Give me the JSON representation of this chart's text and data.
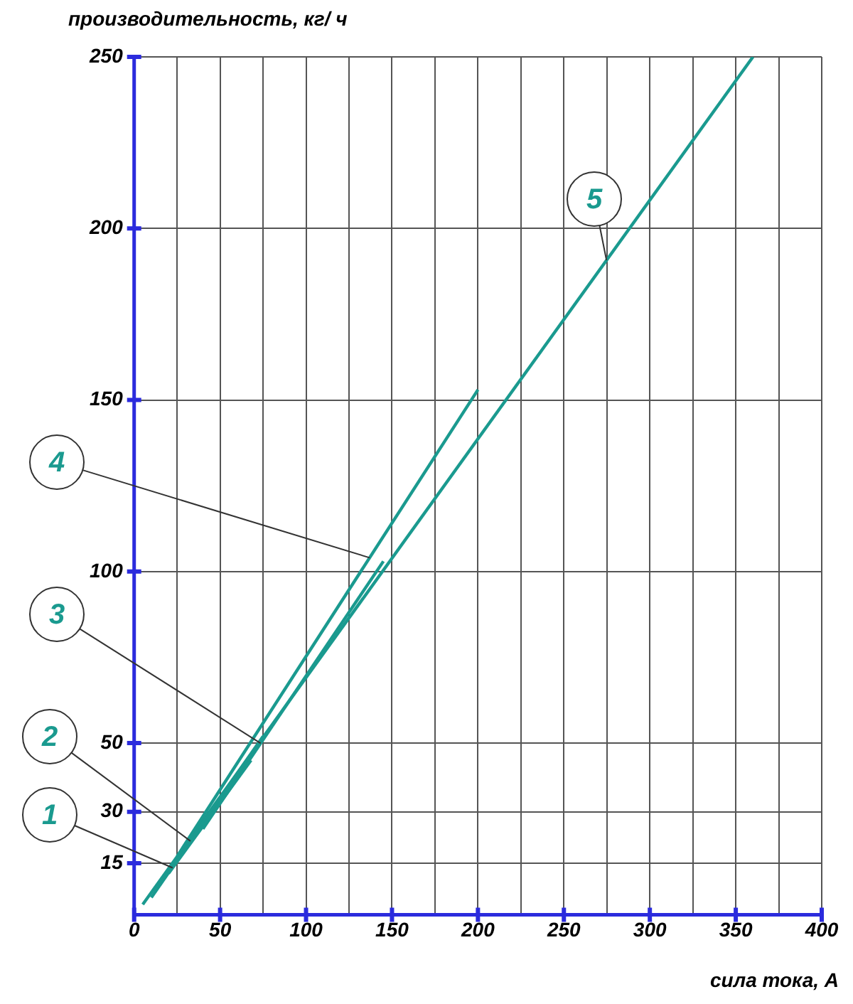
{
  "chart_data": {
    "type": "line",
    "xlabel": "сила тока, А",
    "ylabel": "производительность, кг/ ч",
    "series": [
      {
        "name": "1",
        "color": "#1a9a8f",
        "x": [
          20,
          68
        ],
        "values": [
          12,
          45
        ]
      },
      {
        "name": "2",
        "color": "#1a9a8f",
        "x": [
          10,
          75
        ],
        "values": [
          5,
          52
        ]
      },
      {
        "name": "3",
        "color": "#1a9a8f",
        "x": [
          40,
          145
        ],
        "values": [
          25,
          103
        ]
      },
      {
        "name": "4",
        "color": "#1a9a8f",
        "x": [
          25,
          200
        ],
        "values": [
          17,
          153
        ]
      },
      {
        "name": "5",
        "color": "#1a9a8f",
        "x": [
          5,
          360
        ],
        "values": [
          3,
          250
        ]
      }
    ],
    "xlim": [
      0,
      400
    ],
    "ylim": [
      0,
      250
    ],
    "xticks": [
      0,
      {
        "value": 25,
        "label": null
      },
      50,
      {
        "value": 75,
        "label": null
      },
      100,
      {
        "value": 125,
        "label": null
      },
      150,
      {
        "value": 175,
        "label": null
      },
      200,
      {
        "value": 225,
        "label": null
      },
      250,
      {
        "value": 275,
        "label": null
      },
      300,
      {
        "value": 325,
        "label": null
      },
      350,
      {
        "value": 375,
        "label": null
      },
      400
    ],
    "yticks": [
      {
        "value": 0,
        "label": null
      },
      15,
      30,
      50,
      100,
      150,
      200,
      250
    ],
    "grid": true,
    "marker": "none",
    "line_style": "solid",
    "legend": false
  }
}
